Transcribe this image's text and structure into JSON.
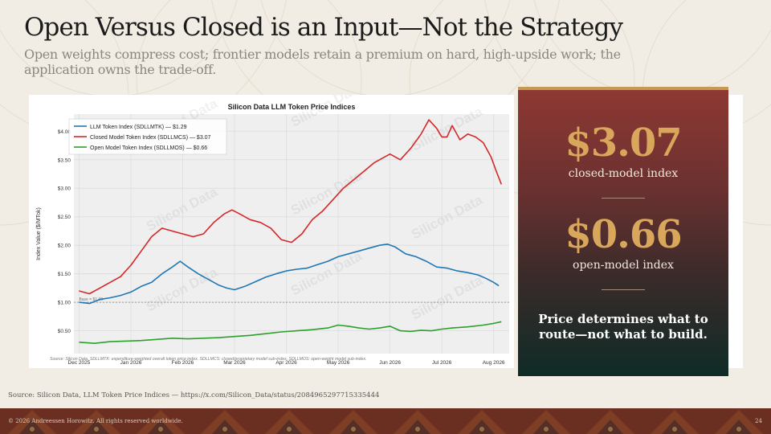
{
  "slide": {
    "title": "Open Versus Closed is an Input—Not the Strategy",
    "subtitle": "Open weights compress cost; frontier models retain a premium on hard, high-upside work; the application owns the trade-off.",
    "source": "Source: Silicon Data, LLM Token Price Indices — https://x.com/Silicon_Data/status/2084965297715335444",
    "copyright": "© 2026 Andreessen Horowitz. All rights reserved worldwide.",
    "page_number": "24"
  },
  "panel": {
    "stat1_value": "$3.07",
    "stat1_label": "closed-model index",
    "stat2_value": "$0.66",
    "stat2_label": "open-model index",
    "callout": "Price determines what to route—not what to build."
  },
  "colors": {
    "closed": "#d62728",
    "total": "#1f77b4",
    "open": "#2ca02c",
    "accent_gold": "#d9a75b"
  },
  "chart_data": {
    "type": "line",
    "title": "Silicon Data LLM Token Price Indices",
    "ylabel": "Index Value ($/MTok)",
    "xlabel": "",
    "watermark": "Silicon Data",
    "reference_label": "Base = $1.00",
    "reference_value": 1.0,
    "footnote": "Source: Silicon Data. SDLLMTK: expenditure-weighted overall token price index. SDLLMCS: closed/proprietary model sub-index. SDLLMOS: open-weight model sub-index.",
    "x_ticks": [
      "Dec 2025",
      "Jan 2026",
      "Feb 2026",
      "Mar 2026",
      "Apr 2026",
      "May 2026",
      "Jun 2026",
      "Jul 2026",
      "Aug 2026"
    ],
    "y_ticks": [
      "$0.50",
      "$1.00",
      "$1.50",
      "$2.00",
      "$2.50",
      "$3.00",
      "$3.50",
      "$4.00"
    ],
    "y_tick_values": [
      0.5,
      1.0,
      1.5,
      2.0,
      2.5,
      3.0,
      3.5,
      4.0
    ],
    "ylim": [
      0.1,
      4.3
    ],
    "xlim": [
      -0.1,
      8.3
    ],
    "grid": true,
    "legend_position": "top-left",
    "series": [
      {
        "name": "LLM Token Index (SDLLMTK) — $1.29",
        "color": "#1f77b4",
        "points": [
          [
            0.0,
            1.0
          ],
          [
            0.2,
            0.98
          ],
          [
            0.4,
            1.05
          ],
          [
            0.6,
            1.08
          ],
          [
            0.8,
            1.12
          ],
          [
            1.0,
            1.18
          ],
          [
            1.2,
            1.28
          ],
          [
            1.4,
            1.35
          ],
          [
            1.6,
            1.5
          ],
          [
            1.8,
            1.62
          ],
          [
            1.95,
            1.72
          ],
          [
            2.1,
            1.62
          ],
          [
            2.3,
            1.5
          ],
          [
            2.5,
            1.4
          ],
          [
            2.7,
            1.3
          ],
          [
            2.85,
            1.25
          ],
          [
            3.0,
            1.22
          ],
          [
            3.2,
            1.28
          ],
          [
            3.4,
            1.36
          ],
          [
            3.6,
            1.44
          ],
          [
            3.8,
            1.5
          ],
          [
            4.0,
            1.55
          ],
          [
            4.2,
            1.58
          ],
          [
            4.4,
            1.6
          ],
          [
            4.6,
            1.66
          ],
          [
            4.8,
            1.72
          ],
          [
            5.0,
            1.8
          ],
          [
            5.2,
            1.85
          ],
          [
            5.4,
            1.9
          ],
          [
            5.6,
            1.95
          ],
          [
            5.8,
            2.0
          ],
          [
            5.95,
            2.02
          ],
          [
            6.1,
            1.97
          ],
          [
            6.3,
            1.85
          ],
          [
            6.5,
            1.8
          ],
          [
            6.7,
            1.72
          ],
          [
            6.9,
            1.62
          ],
          [
            7.1,
            1.6
          ],
          [
            7.3,
            1.55
          ],
          [
            7.5,
            1.52
          ],
          [
            7.7,
            1.48
          ],
          [
            7.85,
            1.42
          ],
          [
            8.0,
            1.35
          ],
          [
            8.1,
            1.29
          ]
        ]
      },
      {
        "name": "Closed Model Token Index (SDLLMCS) — $3.07",
        "color": "#d62728",
        "points": [
          [
            0.0,
            1.2
          ],
          [
            0.2,
            1.15
          ],
          [
            0.4,
            1.25
          ],
          [
            0.6,
            1.35
          ],
          [
            0.8,
            1.45
          ],
          [
            1.0,
            1.65
          ],
          [
            1.2,
            1.9
          ],
          [
            1.4,
            2.15
          ],
          [
            1.6,
            2.3
          ],
          [
            1.8,
            2.25
          ],
          [
            2.0,
            2.2
          ],
          [
            2.2,
            2.15
          ],
          [
            2.4,
            2.2
          ],
          [
            2.6,
            2.4
          ],
          [
            2.8,
            2.55
          ],
          [
            2.95,
            2.62
          ],
          [
            3.1,
            2.55
          ],
          [
            3.3,
            2.45
          ],
          [
            3.5,
            2.4
          ],
          [
            3.7,
            2.3
          ],
          [
            3.9,
            2.1
          ],
          [
            4.1,
            2.05
          ],
          [
            4.3,
            2.2
          ],
          [
            4.5,
            2.45
          ],
          [
            4.7,
            2.6
          ],
          [
            4.9,
            2.8
          ],
          [
            5.1,
            3.0
          ],
          [
            5.3,
            3.15
          ],
          [
            5.5,
            3.3
          ],
          [
            5.7,
            3.45
          ],
          [
            5.9,
            3.55
          ],
          [
            6.0,
            3.6
          ],
          [
            6.2,
            3.5
          ],
          [
            6.4,
            3.7
          ],
          [
            6.6,
            3.95
          ],
          [
            6.75,
            4.2
          ],
          [
            6.9,
            4.05
          ],
          [
            7.0,
            3.9
          ],
          [
            7.1,
            3.9
          ],
          [
            7.2,
            4.1
          ],
          [
            7.35,
            3.85
          ],
          [
            7.5,
            3.95
          ],
          [
            7.65,
            3.9
          ],
          [
            7.8,
            3.8
          ],
          [
            7.95,
            3.55
          ],
          [
            8.05,
            3.3
          ],
          [
            8.15,
            3.07
          ]
        ]
      },
      {
        "name": "Open Model Token Index (SDLLMOS) — $0.66",
        "color": "#2ca02c",
        "points": [
          [
            0.0,
            0.3
          ],
          [
            0.3,
            0.28
          ],
          [
            0.6,
            0.31
          ],
          [
            0.9,
            0.32
          ],
          [
            1.2,
            0.33
          ],
          [
            1.5,
            0.35
          ],
          [
            1.8,
            0.37
          ],
          [
            2.1,
            0.36
          ],
          [
            2.4,
            0.37
          ],
          [
            2.7,
            0.38
          ],
          [
            3.0,
            0.4
          ],
          [
            3.3,
            0.42
          ],
          [
            3.6,
            0.45
          ],
          [
            3.9,
            0.48
          ],
          [
            4.2,
            0.5
          ],
          [
            4.5,
            0.52
          ],
          [
            4.8,
            0.55
          ],
          [
            5.0,
            0.6
          ],
          [
            5.2,
            0.58
          ],
          [
            5.4,
            0.55
          ],
          [
            5.6,
            0.53
          ],
          [
            5.8,
            0.55
          ],
          [
            6.0,
            0.58
          ],
          [
            6.2,
            0.5
          ],
          [
            6.4,
            0.49
          ],
          [
            6.6,
            0.51
          ],
          [
            6.8,
            0.5
          ],
          [
            7.0,
            0.53
          ],
          [
            7.2,
            0.55
          ],
          [
            7.5,
            0.57
          ],
          [
            7.8,
            0.6
          ],
          [
            8.0,
            0.63
          ],
          [
            8.15,
            0.66
          ]
        ]
      }
    ]
  }
}
